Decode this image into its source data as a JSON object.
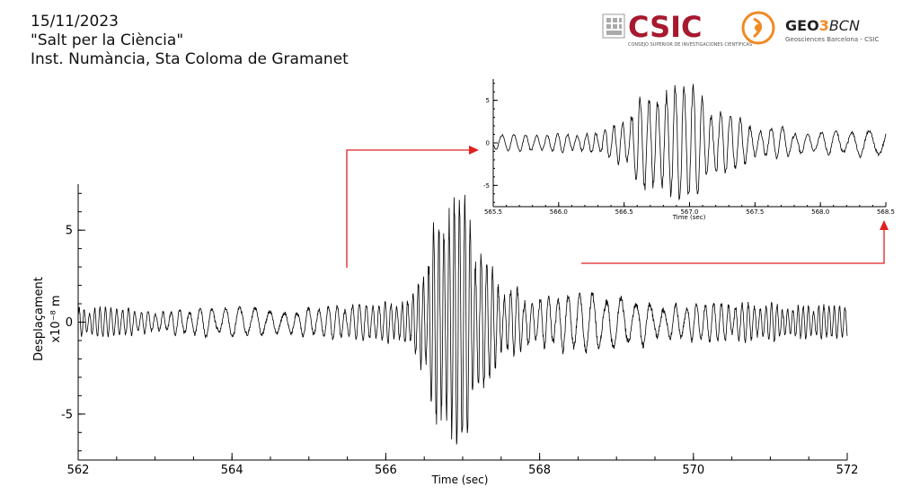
{
  "header": {
    "date": "15/11/2023",
    "event": "\"Salt per la Ciència\"",
    "place": "Inst. Numància, Sta Coloma de Gramanet"
  },
  "logos": {
    "csic": "CSIC",
    "csic_sub": "CONSEJO SUPERIOR DE INVESTIGACIONES CIENTÍFICAS",
    "geo_left": "GEO",
    "geo_mid": "3",
    "geo_right": "BCN",
    "geo_sub": "Geosciences Barcelona - CSIC",
    "csic_color": "#a6192e",
    "accent_color": "#f08a24"
  },
  "chart_data": [
    {
      "type": "line",
      "title": "",
      "xlabel": "Time (sec)",
      "ylabel": "Desplaçament",
      "ylabel_unit": "x10⁻⁸ m",
      "xlim": [
        562,
        572
      ],
      "ylim": [
        -7.5,
        7.5
      ],
      "xticks": [
        562,
        564,
        566,
        568,
        570,
        572
      ],
      "yticks": [
        -5,
        0,
        5
      ],
      "line_color": "#000000",
      "x_range": [
        562,
        572
      ],
      "envelope_profile": {
        "x": [
          562.0,
          563.0,
          564.0,
          565.0,
          565.8,
          566.2,
          566.45,
          566.6,
          566.8,
          567.0,
          567.15,
          567.3,
          567.5,
          567.8,
          568.2,
          568.8,
          569.3,
          570.0,
          571.0,
          572.0
        ],
        "amplitude": [
          0.8,
          0.7,
          0.8,
          0.8,
          1.0,
          1.3,
          2.8,
          5.0,
          6.3,
          6.8,
          5.2,
          3.4,
          2.0,
          1.8,
          1.6,
          1.5,
          1.3,
          1.0,
          1.1,
          0.8
        ]
      }
    },
    {
      "type": "line",
      "title": "",
      "xlabel": "Time (sec)",
      "ylabel": "",
      "xlim": [
        565.5,
        568.5
      ],
      "ylim": [
        -7.5,
        7.5
      ],
      "xticks": [
        565.5,
        566.0,
        566.5,
        567.0,
        567.5,
        568.0,
        568.5
      ],
      "xtick_labels": [
        "565.5",
        "566.0",
        "566.5",
        "567.0",
        "567.5",
        "568.0",
        "568.5"
      ],
      "yticks": [
        -5,
        0,
        5
      ],
      "line_color": "#000000",
      "x_range": [
        565.5,
        568.5
      ]
    }
  ],
  "annotations": {
    "arrow_color": "#e02020"
  }
}
